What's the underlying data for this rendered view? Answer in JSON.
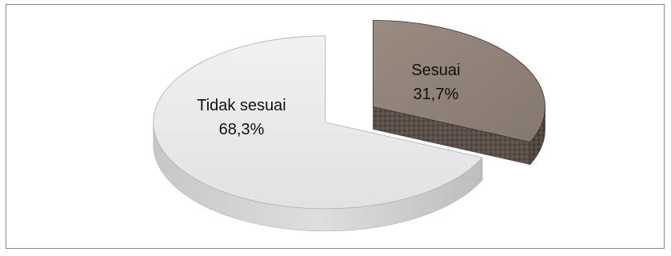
{
  "chart_data": {
    "type": "pie",
    "style": "3d-exploded",
    "title": "",
    "legend": "none",
    "slices": [
      {
        "label": "Tidak sesuai",
        "value": 68.3,
        "value_label": "68,3%",
        "color": "#e6e6e6"
      },
      {
        "label": "Sesuai",
        "value": 31.7,
        "value_label": "31,7%",
        "color": "#8f8178"
      }
    ]
  }
}
